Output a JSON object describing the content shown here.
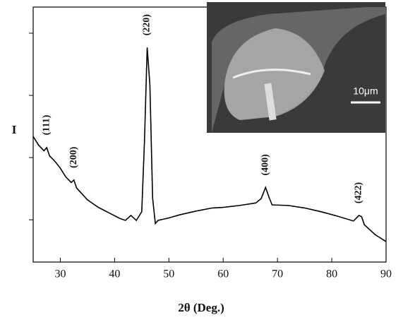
{
  "chart_data": {
    "type": "line",
    "xlabel": "2θ (Deg.)",
    "ylabel": "I",
    "x": [
      25,
      26,
      27,
      27.5,
      28,
      29,
      30,
      31,
      32,
      32.5,
      33,
      35,
      37,
      39,
      41,
      42,
      43,
      44,
      45,
      45.5,
      46,
      46.5,
      47,
      47.5,
      48,
      50,
      52,
      55,
      58,
      60,
      63,
      66,
      67,
      67.8,
      68.5,
      69,
      72,
      75,
      78,
      81,
      84,
      85,
      85.5,
      86,
      88,
      90
    ],
    "values": [
      2.34,
      2.2,
      2.11,
      2.16,
      2.03,
      1.94,
      1.83,
      1.69,
      1.6,
      1.64,
      1.51,
      1.32,
      1.2,
      1.11,
      1.02,
      0.99,
      1.07,
      0.99,
      1.13,
      2.26,
      3.77,
      3.17,
      1.35,
      0.94,
      0.99,
      1.03,
      1.08,
      1.14,
      1.19,
      1.2,
      1.23,
      1.27,
      1.34,
      1.52,
      1.35,
      1.24,
      1.23,
      1.19,
      1.13,
      1.06,
      0.98,
      1.07,
      1.05,
      0.92,
      0.76,
      0.65
    ],
    "color": "#000000",
    "xlim": [
      25,
      90
    ],
    "xticks": [
      30,
      40,
      50,
      60,
      70,
      80,
      90
    ],
    "ylim": [
      0.32,
      4.42
    ],
    "yticks": [
      1,
      2,
      3,
      4
    ],
    "annotations": [
      {
        "text": "(111)",
        "x": 27.5
      },
      {
        "text": "(200)",
        "x": 32.5
      },
      {
        "text": "(220)",
        "x": 46
      },
      {
        "text": "(400)",
        "x": 67.8
      },
      {
        "text": "(422)",
        "x": 85
      }
    ],
    "inset_scale_label": "10μm"
  }
}
